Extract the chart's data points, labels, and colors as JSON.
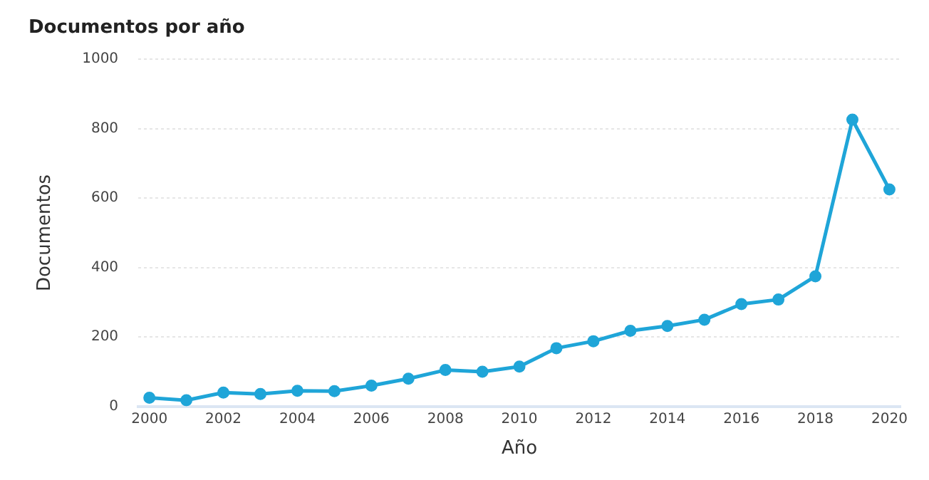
{
  "chart_data": {
    "type": "line",
    "title": "Documentos por año",
    "xlabel": "Año",
    "ylabel": "Documentos",
    "x": [
      2000,
      2001,
      2002,
      2003,
      2004,
      2005,
      2006,
      2007,
      2008,
      2009,
      2010,
      2011,
      2012,
      2013,
      2014,
      2015,
      2016,
      2017,
      2018,
      2019,
      2020
    ],
    "series": [
      {
        "color": "#1fa5d8",
        "values": [
          25,
          18,
          40,
          36,
          45,
          44,
          60,
          80,
          105,
          100,
          115,
          168,
          188,
          218,
          232,
          250,
          295,
          308,
          375,
          826,
          625
        ]
      }
    ],
    "xlim": [
      1999.7,
      2020.3
    ],
    "xticks": [
      2000,
      2002,
      2004,
      2006,
      2008,
      2010,
      2012,
      2014,
      2016,
      2018,
      2020
    ],
    "ylim": [
      0,
      1000
    ],
    "yticks": [
      0,
      200,
      400,
      600,
      800,
      1000
    ],
    "grid": "y",
    "legend": false,
    "marker": "circle",
    "line_style": "solid"
  }
}
